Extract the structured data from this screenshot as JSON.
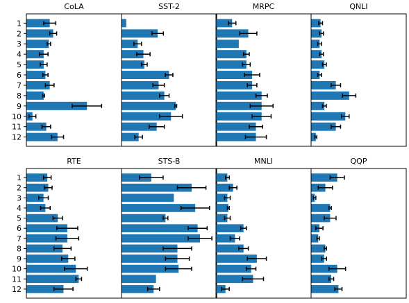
{
  "chart_data": [
    {
      "type": "bar",
      "orientation": "horizontal",
      "title": "CoLA",
      "categories": [
        "1",
        "2",
        "3",
        "4",
        "5",
        "6",
        "7",
        "8",
        "9",
        "10",
        "11",
        "12"
      ],
      "values": [
        0.27,
        0.31,
        0.26,
        0.2,
        0.2,
        0.22,
        0.27,
        0.2,
        0.7,
        0.07,
        0.23,
        0.36
      ],
      "errors": [
        0.07,
        0.04,
        0.02,
        0.05,
        0.04,
        0.03,
        0.05,
        0.01,
        0.17,
        0.04,
        0.05,
        0.07
      ],
      "xlim": [
        0,
        1.1
      ],
      "color": "#1f77b4"
    },
    {
      "type": "bar",
      "orientation": "horizontal",
      "title": "SST-2",
      "categories": [
        "1",
        "2",
        "3",
        "4",
        "5",
        "6",
        "7",
        "8",
        "9",
        "10",
        "11",
        "12"
      ],
      "values": [
        0.05,
        0.38,
        0.17,
        0.23,
        0.24,
        0.5,
        0.39,
        0.45,
        0.57,
        0.52,
        0.37,
        0.18
      ],
      "errors": [
        0.0,
        0.06,
        0.04,
        0.07,
        0.03,
        0.04,
        0.06,
        0.05,
        0.01,
        0.12,
        0.08,
        0.04
      ],
      "xlim": [
        0,
        1.0
      ],
      "color": "#1f77b4"
    },
    {
      "type": "bar",
      "orientation": "horizontal",
      "title": "MRPC",
      "categories": [
        "1",
        "2",
        "3",
        "4",
        "5",
        "6",
        "7",
        "8",
        "9",
        "10",
        "11",
        "12"
      ],
      "values": [
        0.17,
        0.34,
        0.24,
        0.32,
        0.32,
        0.38,
        0.38,
        0.48,
        0.48,
        0.48,
        0.42,
        0.42
      ],
      "errors": [
        0.04,
        0.09,
        0.0,
        0.03,
        0.04,
        0.08,
        0.05,
        0.06,
        0.12,
        0.1,
        0.07,
        0.11
      ],
      "xlim": [
        0,
        1.0
      ],
      "color": "#1f77b4"
    },
    {
      "type": "bar",
      "orientation": "horizontal",
      "title": "QNLI",
      "categories": [
        "1",
        "2",
        "3",
        "4",
        "5",
        "6",
        "7",
        "8",
        "9",
        "10",
        "11",
        "12"
      ],
      "values": [
        0.1,
        0.11,
        0.09,
        0.11,
        0.14,
        0.09,
        0.26,
        0.4,
        0.14,
        0.36,
        0.26,
        0.05
      ],
      "errors": [
        0.02,
        0.02,
        0.02,
        0.02,
        0.02,
        0.02,
        0.05,
        0.07,
        0.02,
        0.04,
        0.05,
        0.01
      ],
      "xlim": [
        0,
        1.0
      ],
      "color": "#1f77b4"
    },
    {
      "type": "bar",
      "orientation": "horizontal",
      "title": "RTE",
      "categories": [
        "1",
        "2",
        "3",
        "4",
        "5",
        "6",
        "7",
        "8",
        "9",
        "10",
        "11",
        "12"
      ],
      "values": [
        0.22,
        0.23,
        0.18,
        0.2,
        0.33,
        0.43,
        0.43,
        0.38,
        0.44,
        0.52,
        0.55,
        0.39
      ],
      "errors": [
        0.04,
        0.04,
        0.05,
        0.05,
        0.05,
        0.11,
        0.12,
        0.09,
        0.07,
        0.12,
        0.03,
        0.1
      ],
      "xlim": [
        0,
        1.0
      ],
      "color": "#1f77b4"
    },
    {
      "type": "bar",
      "orientation": "horizontal",
      "title": "STS-B",
      "categories": [
        "1",
        "2",
        "3",
        "4",
        "5",
        "6",
        "7",
        "8",
        "9",
        "10",
        "11",
        "12"
      ],
      "values": [
        0.25,
        0.59,
        0.44,
        0.62,
        0.37,
        0.64,
        0.66,
        0.47,
        0.47,
        0.48,
        0.29,
        0.27
      ],
      "errors": [
        0.1,
        0.12,
        0.0,
        0.12,
        0.02,
        0.08,
        0.1,
        0.12,
        0.1,
        0.11,
        0.0,
        0.05
      ],
      "xlim": [
        0,
        0.8
      ],
      "color": "#1f77b4"
    },
    {
      "type": "bar",
      "orientation": "horizontal",
      "title": "MNLI",
      "categories": [
        "1",
        "2",
        "3",
        "4",
        "5",
        "6",
        "7",
        "8",
        "9",
        "10",
        "11",
        "12"
      ],
      "values": [
        0.12,
        0.18,
        0.12,
        0.13,
        0.12,
        0.29,
        0.2,
        0.29,
        0.43,
        0.37,
        0.39,
        0.1
      ],
      "errors": [
        0.02,
        0.04,
        0.03,
        0.01,
        0.03,
        0.03,
        0.05,
        0.05,
        0.1,
        0.05,
        0.11,
        0.04
      ],
      "xlim": [
        0,
        1.0
      ],
      "color": "#1f77b4"
    },
    {
      "type": "bar",
      "orientation": "horizontal",
      "title": "QQP",
      "categories": [
        "1",
        "2",
        "3",
        "4",
        "5",
        "6",
        "7",
        "8",
        "9",
        "10",
        "11",
        "12"
      ],
      "values": [
        0.22,
        0.12,
        0.03,
        0.16,
        0.16,
        0.07,
        0.06,
        0.12,
        0.11,
        0.22,
        0.17,
        0.23
      ],
      "errors": [
        0.06,
        0.06,
        0.01,
        0.01,
        0.05,
        0.03,
        0.01,
        0.01,
        0.02,
        0.07,
        0.02,
        0.03
      ],
      "xlim": [
        0,
        0.8
      ],
      "color": "#1f77b4"
    }
  ]
}
